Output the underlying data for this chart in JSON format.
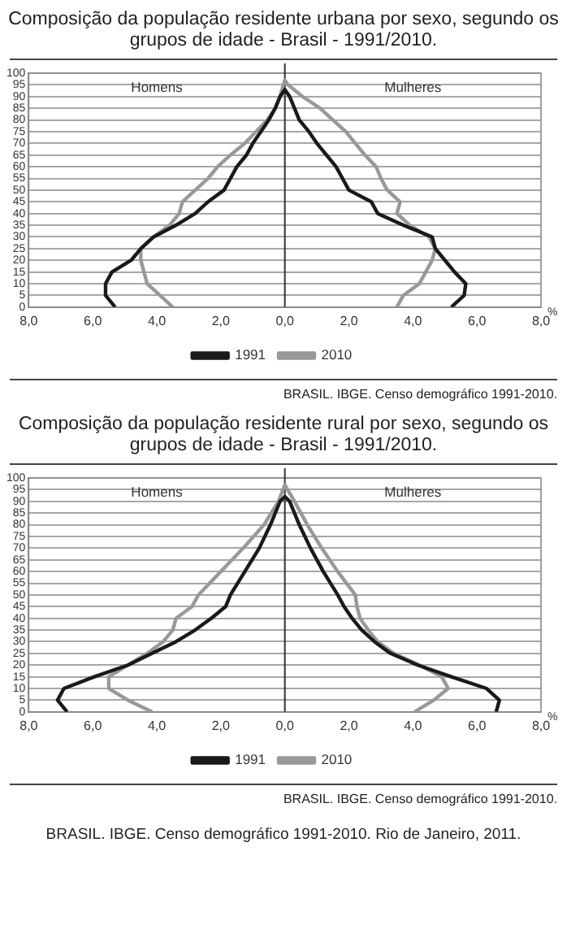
{
  "chart_data": [
    {
      "type": "line",
      "title": "Composição da população residente urbana por sexo, segundo os grupos de idade - Brasil - 1991/2010.",
      "xlabel": "%",
      "xlim": [
        -8,
        8
      ],
      "xticks": [
        {
          "value": -8,
          "label": "8,0"
        },
        {
          "value": -6,
          "label": "6,0"
        },
        {
          "value": -4,
          "label": "4,0"
        },
        {
          "value": -2,
          "label": "2,0"
        },
        {
          "value": 0,
          "label": "0,0"
        },
        {
          "value": 2,
          "label": "2,0"
        },
        {
          "value": 4,
          "label": "4,0"
        },
        {
          "value": 6,
          "label": "6,0"
        },
        {
          "value": 8,
          "label": "8,0"
        }
      ],
      "ylim": [
        0,
        100
      ],
      "yticks": [
        0,
        5,
        10,
        15,
        20,
        25,
        30,
        35,
        40,
        45,
        50,
        55,
        60,
        65,
        70,
        75,
        80,
        85,
        90,
        95,
        100
      ],
      "grid": "y",
      "legend": "bottom",
      "marker": "none",
      "line_style": "solid",
      "ref_lines": [
        {
          "axis": "x",
          "value": 0,
          "color": "#333333"
        }
      ],
      "series": [
        {
          "name": "1991",
          "color": "#1a1a1a",
          "x": [
            -5.3,
            -5.6,
            -5.6,
            -5.4,
            -4.8,
            -4.5,
            -4.1,
            -3.4,
            -2.8,
            -2.4,
            -1.9,
            -1.7,
            -1.5,
            -1.2,
            -1,
            -0.75,
            -0.5,
            -0.3,
            -0.15,
            0,
            0.15,
            0.3,
            0.45,
            0.75,
            1,
            1.3,
            1.6,
            1.8,
            2,
            2.7,
            2.9,
            3.7,
            4.6,
            4.7,
            5,
            5.3,
            5.65,
            5.6,
            5.2
          ],
          "values": [
            0,
            5,
            10,
            15,
            20,
            25,
            30,
            35,
            40,
            45,
            50,
            55,
            60,
            65,
            70,
            75,
            80,
            85,
            90,
            93,
            90,
            85,
            80,
            75,
            70,
            65,
            60,
            55,
            50,
            45,
            40,
            35,
            30,
            25,
            20,
            15,
            10,
            5,
            0
          ]
        },
        {
          "name": "2010",
          "color": "#999999",
          "x": [
            -3.5,
            -3.9,
            -4.3,
            -4.4,
            -4.5,
            -4.5,
            -4.1,
            -3.6,
            -3.3,
            -3.2,
            -2.8,
            -2.4,
            -2.1,
            -1.7,
            -1.25,
            -0.9,
            -0.55,
            -0.3,
            -0.15,
            -0.05,
            0,
            0.1,
            0.55,
            1.1,
            1.5,
            1.9,
            2.2,
            2.5,
            2.85,
            3,
            3.2,
            3.6,
            3.5,
            3.9,
            4.5,
            4.7,
            4.6,
            4.4,
            4.2,
            3.7,
            3.5
          ],
          "values": [
            0,
            5,
            10,
            15,
            20,
            25,
            30,
            35,
            40,
            45,
            50,
            55,
            60,
            65,
            70,
            75,
            80,
            85,
            90,
            95,
            97,
            95,
            90,
            85,
            80,
            75,
            70,
            65,
            60,
            55,
            50,
            45,
            40,
            35,
            30,
            25,
            20,
            15,
            10,
            5,
            0
          ]
        }
      ],
      "annotations": [
        "Homens",
        "Mulheres",
        "BRASIL. IBGE. Censo demográfico 1991-2010."
      ]
    },
    {
      "type": "line",
      "title": "Composição da população residente rural por sexo, segundo os grupos de idade - Brasil - 1991/2010.",
      "xlabel": "%",
      "xlim": [
        -8,
        8
      ],
      "xticks": [
        {
          "value": -8,
          "label": "8,0"
        },
        {
          "value": -6,
          "label": "6,0"
        },
        {
          "value": -4,
          "label": "4,0"
        },
        {
          "value": -2,
          "label": "2,0"
        },
        {
          "value": 0,
          "label": "0,0"
        },
        {
          "value": 2,
          "label": "2,0"
        },
        {
          "value": 4,
          "label": "4,0"
        },
        {
          "value": 6,
          "label": "6,0"
        },
        {
          "value": 8,
          "label": "8,0"
        }
      ],
      "ylim": [
        0,
        100
      ],
      "yticks": [
        0,
        5,
        10,
        15,
        20,
        25,
        30,
        35,
        40,
        45,
        50,
        55,
        60,
        65,
        70,
        75,
        80,
        85,
        90,
        95,
        100
      ],
      "grid": "y",
      "legend": "bottom",
      "marker": "none",
      "line_style": "solid",
      "ref_lines": [
        {
          "axis": "x",
          "value": 0,
          "color": "#333333"
        }
      ],
      "series": [
        {
          "name": "1991",
          "color": "#1a1a1a",
          "x": [
            -6.8,
            -7.1,
            -6.9,
            -5.95,
            -4.9,
            -4.15,
            -3.4,
            -2.8,
            -2.3,
            -1.85,
            -1.7,
            -1.25,
            -0.8,
            -0.45,
            -0.15,
            0,
            0.15,
            0.45,
            0.8,
            1.2,
            1.65,
            1.85,
            2.1,
            2.4,
            2.8,
            3.3,
            4.15,
            5.2,
            6.3,
            6.7,
            6.6
          ],
          "values": [
            0,
            5,
            10,
            15,
            20,
            25,
            30,
            35,
            40,
            45,
            50,
            60,
            70,
            80,
            90,
            92,
            90,
            80,
            70,
            60,
            50,
            45,
            40,
            35,
            30,
            25,
            20,
            15,
            10,
            5,
            0
          ]
        },
        {
          "name": "2010",
          "color": "#999999",
          "x": [
            -4.15,
            -4.9,
            -5.5,
            -5.5,
            -4.9,
            -4.3,
            -3.8,
            -3.5,
            -3.4,
            -2.9,
            -2.7,
            -2,
            -1.3,
            -0.65,
            -0.2,
            0,
            0.3,
            0.7,
            1.15,
            1.65,
            2.2,
            2.25,
            2.35,
            2.6,
            2.9,
            3.4,
            4.2,
            4.9,
            5.1,
            4.65,
            4.05
          ],
          "values": [
            0,
            5,
            10,
            15,
            20,
            25,
            30,
            35,
            40,
            45,
            50,
            60,
            70,
            80,
            90,
            97,
            90,
            80,
            70,
            60,
            50,
            45,
            40,
            35,
            30,
            25,
            20,
            15,
            10,
            5,
            0
          ]
        }
      ],
      "annotations": [
        "Homens",
        "Mulheres",
        "BRASIL. IBGE. Censo demográfico 1991-2010.",
        "BRASIL. IBGE. Censo demográfico 1991-2010. Rio de Janeiro, 2011."
      ]
    }
  ]
}
